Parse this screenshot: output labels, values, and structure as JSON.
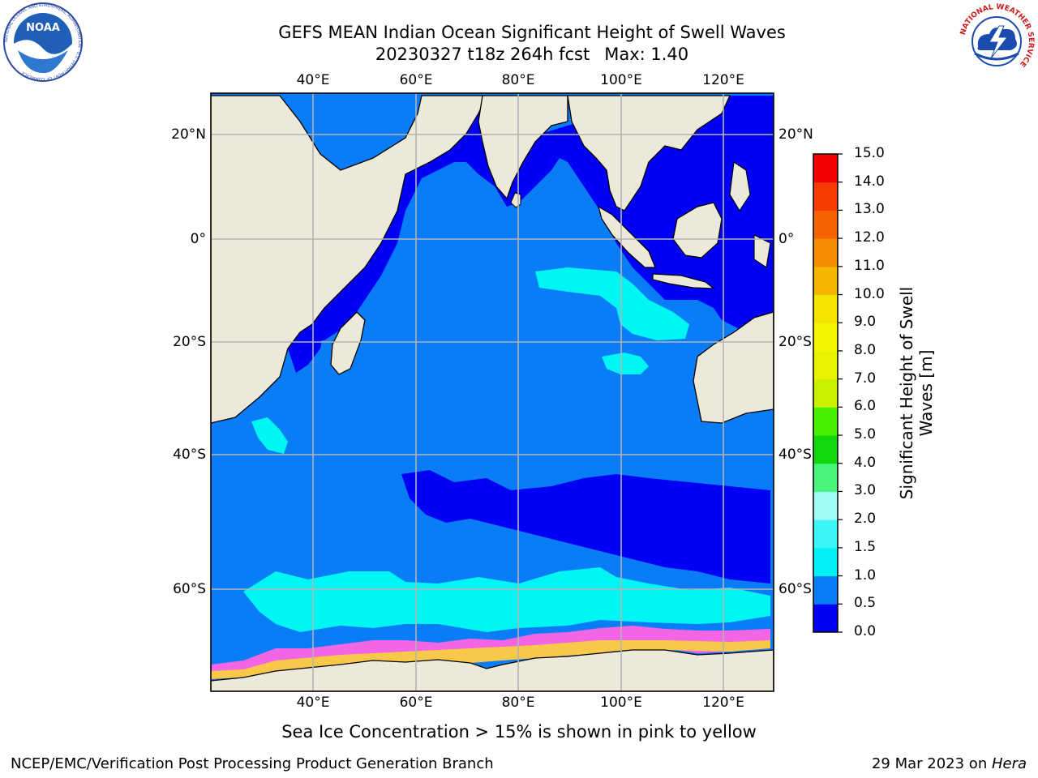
{
  "title": {
    "line1": "GEFS MEAN Indian Ocean Significant Height of Swell Waves",
    "line2": "20230327 t18z 264h fcst",
    "max": "Max: 1.40"
  },
  "logos": {
    "noaa": "NOAA",
    "noaa_ring": "NATIONAL OCEANIC AND ATMOSPHERIC ADMINISTRATION · U.S. DEPARTMENT OF COMMERCE",
    "nws_ring": "NATIONAL WEATHER SERVICE"
  },
  "axes": {
    "lon_ticks": [
      "40°E",
      "60°E",
      "80°E",
      "100°E",
      "120°E"
    ],
    "lat_ticks_left": [
      "20°N",
      "0°",
      "20°S",
      "40°S",
      "60°S"
    ],
    "lat_ticks_right": [
      "20°N",
      "0°",
      "20°S",
      "40°S",
      "60°S"
    ]
  },
  "colorbar": {
    "label_line1": "Significant Height of Swell",
    "label_line2": "Waves [m]",
    "ticks": [
      "0.0",
      "0.5",
      "1.0",
      "1.5",
      "2.0",
      "3.0",
      "4.0",
      "5.0",
      "6.0",
      "7.0",
      "8.0",
      "9.0",
      "10.0",
      "11.0",
      "12.0",
      "13.0",
      "14.0",
      "15.0"
    ],
    "colors": [
      "#0000f5",
      "#0a7cf5",
      "#00f0f5",
      "#3cf6f5",
      "#a0fbf7",
      "#48f57a",
      "#10d80c",
      "#48f000",
      "#c8f000",
      "#e8f200",
      "#f5f500",
      "#f5e400",
      "#f5b400",
      "#f58c00",
      "#f56400",
      "#f53c00",
      "#f50000"
    ]
  },
  "map_colors": {
    "land": "#ede9d8",
    "dark_blue": "#0000f5",
    "mid_blue": "#0a7cf5",
    "cyan": "#00f5f5",
    "ice_pink": "#f266e6",
    "ice_yellow": "#f7c84a"
  },
  "note": "Sea Ice Concentration > 15% is shown in pink to yellow",
  "footer": {
    "left": "NCEP/EMC/Verification Post Processing Product Generation Branch",
    "right_prefix": "29 Mar 2023 on ",
    "right_host": "Hera"
  }
}
